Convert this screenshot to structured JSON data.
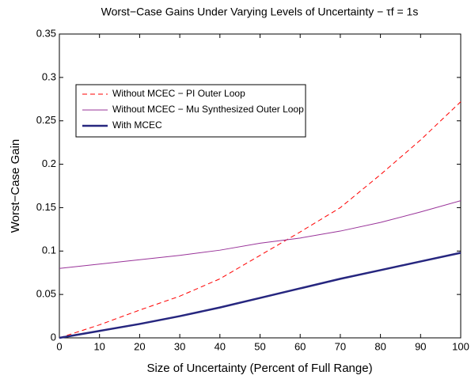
{
  "chart_data": {
    "type": "line",
    "title": "Worst−Case Gains Under Varying Levels of Uncertainty − τf = 1s",
    "x_label": "Size of Uncertainty (Percent of Full Range)",
    "y_label": "Worst−Case Gain",
    "x": [
      0,
      10,
      20,
      30,
      40,
      50,
      60,
      70,
      80,
      90,
      100
    ],
    "series": [
      {
        "name": "Without MCEC − PI Outer Loop",
        "color": "#ff0000",
        "dashed": true,
        "width": 1,
        "values": [
          0,
          0.015,
          0.032,
          0.048,
          0.068,
          0.095,
          0.122,
          0.15,
          0.188,
          0.228,
          0.272
        ]
      },
      {
        "name": "Without MCEC − Mu Synthesized Outer Loop",
        "color": "#993399",
        "dashed": false,
        "width": 1,
        "values": [
          0.08,
          0.085,
          0.09,
          0.095,
          0.101,
          0.109,
          0.115,
          0.123,
          0.133,
          0.145,
          0.158
        ]
      },
      {
        "name": "With MCEC",
        "color": "#26267f",
        "dashed": false,
        "width": 2.5,
        "values": [
          0,
          0.008,
          0.016,
          0.025,
          0.035,
          0.046,
          0.057,
          0.068,
          0.078,
          0.088,
          0.098
        ]
      }
    ],
    "xlim": [
      0,
      100
    ],
    "xticks": [
      0,
      10,
      20,
      30,
      40,
      50,
      60,
      70,
      80,
      90,
      100
    ],
    "ylim": [
      0,
      0.35
    ],
    "yticks": [
      0,
      0.05,
      0.1,
      0.15,
      0.2,
      0.25,
      0.3,
      0.35
    ],
    "grid": false,
    "legend": "upper-left"
  }
}
